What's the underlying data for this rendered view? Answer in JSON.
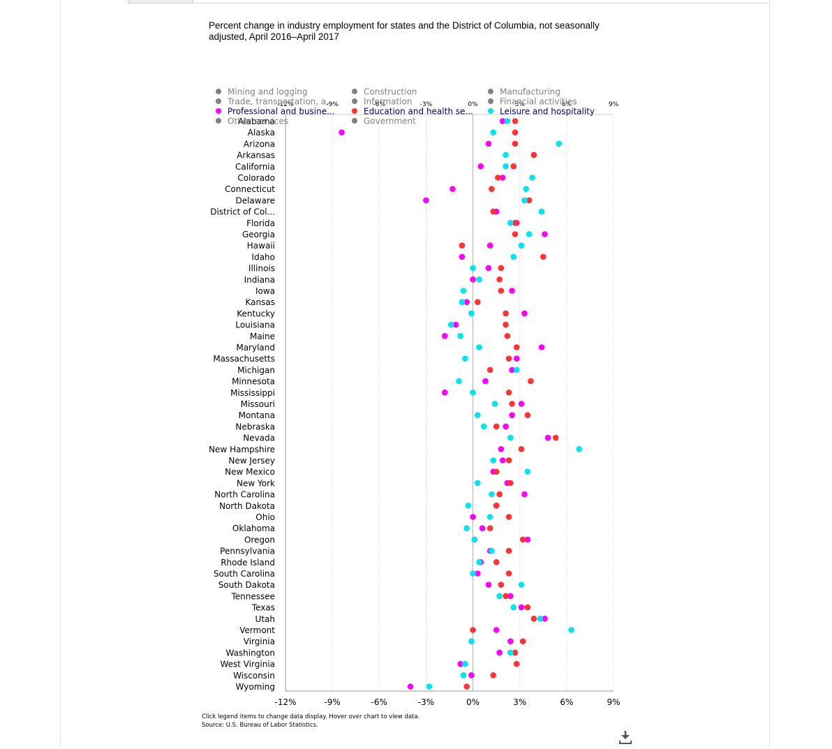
{
  "title": "Percent change in industry employment for states and the District of Columbia, not seasonally adjusted, April 2016–April 2017",
  "footer": {
    "note": "Click legend items to change data display. Hover over chart to view data.",
    "source": "Source: U.S. Bureau of Labor Statistics."
  },
  "icons": {
    "download": "download-icon"
  },
  "chart_data": {
    "type": "scatter",
    "orientation": "horizontal",
    "categories": [
      "Alabama",
      "Alaska",
      "Arizona",
      "Arkansas",
      "California",
      "Colorado",
      "Connecticut",
      "Delaware",
      "District of Col...",
      "Florida",
      "Georgia",
      "Hawaii",
      "Idaho",
      "Illinois",
      "Indiana",
      "Iowa",
      "Kansas",
      "Kentucky",
      "Louisiana",
      "Maine",
      "Maryland",
      "Massachusetts",
      "Michigan",
      "Minnesota",
      "Mississippi",
      "Missouri",
      "Montana",
      "Nebraska",
      "Nevada",
      "New Hampshire",
      "New Jersey",
      "New Mexico",
      "New York",
      "North Carolina",
      "North Dakota",
      "Ohio",
      "Oklahoma",
      "Oregon",
      "Pennsylvania",
      "Rhode Island",
      "South Carolina",
      "South Dakota",
      "Tennessee",
      "Texas",
      "Utah",
      "Vermont",
      "Virginia",
      "Washington",
      "West Virginia",
      "Wisconsin",
      "Wyoming"
    ],
    "xlim": [
      -12,
      9
    ],
    "x_ticks": [
      -12,
      -9,
      -6,
      -3,
      0,
      3,
      6,
      9
    ],
    "x_tick_labels": [
      "-12%",
      "-9%",
      "-6%",
      "-3%",
      "0%",
      "3%",
      "6%",
      "9%"
    ],
    "grid": true,
    "legend_position": "top",
    "legend": [
      {
        "name": "Mining and logging",
        "active": false,
        "color": "#808080"
      },
      {
        "name": "Construction",
        "active": false,
        "color": "#808080"
      },
      {
        "name": "Manufacturing",
        "active": false,
        "color": "#808080"
      },
      {
        "name": "Trade, transportation, a...",
        "active": false,
        "color": "#808080"
      },
      {
        "name": "Information",
        "active": false,
        "color": "#808080"
      },
      {
        "name": "Financial activities",
        "active": false,
        "color": "#808080"
      },
      {
        "name": "Professional and busine...",
        "active": true,
        "color": "#ff00ff"
      },
      {
        "name": "Education and health se...",
        "active": true,
        "color": "#ff3333"
      },
      {
        "name": "Leisure and hospitality",
        "active": true,
        "color": "#00e5ee"
      },
      {
        "name": "Other services",
        "active": false,
        "color": "#808080"
      },
      {
        "name": "Government",
        "active": false,
        "color": "#808080"
      }
    ],
    "series": [
      {
        "name": "Professional and busine...",
        "color": "#ff00ff",
        "values": [
          1.9,
          -8.4,
          1.0,
          3.9,
          0.5,
          1.9,
          -1.3,
          -3.0,
          1.5,
          2.8,
          4.6,
          1.1,
          -0.7,
          1.0,
          0.0,
          2.5,
          -0.4,
          3.3,
          -1.1,
          -1.8,
          4.4,
          2.8,
          2.5,
          0.8,
          -1.8,
          3.1,
          2.5,
          2.1,
          4.8,
          1.8,
          1.9,
          1.3,
          2.2,
          3.3,
          1.5,
          0.0,
          0.6,
          3.5,
          1.1,
          0.5,
          0.3,
          1.0,
          2.4,
          3.1,
          4.6,
          1.5,
          2.4,
          1.7,
          -0.8,
          -0.1,
          -4.0
        ]
      },
      {
        "name": "Education and health se...",
        "color": "#ff3333",
        "values": [
          2.7,
          2.7,
          2.7,
          3.9,
          2.6,
          1.6,
          1.2,
          3.6,
          1.3,
          2.7,
          2.7,
          -0.7,
          4.5,
          1.8,
          1.7,
          1.8,
          0.3,
          2.1,
          2.1,
          2.2,
          2.8,
          2.3,
          1.1,
          3.7,
          2.3,
          2.5,
          3.5,
          1.5,
          5.3,
          3.1,
          2.3,
          1.5,
          2.4,
          1.7,
          1.5,
          2.3,
          1.1,
          3.2,
          2.3,
          1.5,
          2.3,
          1.8,
          2.1,
          3.5,
          3.9,
          0.0,
          3.2,
          2.7,
          2.8,
          1.3,
          -0.4
        ]
      },
      {
        "name": "Leisure and hospitality",
        "color": "#00e5ee",
        "values": [
          2.2,
          1.3,
          5.5,
          2.1,
          2.1,
          3.8,
          3.4,
          3.3,
          4.4,
          2.4,
          3.6,
          3.1,
          2.6,
          0.0,
          0.4,
          -0.6,
          -0.7,
          -0.1,
          -1.4,
          -0.8,
          0.4,
          -0.5,
          2.8,
          -0.9,
          0.0,
          1.4,
          0.3,
          0.7,
          2.4,
          6.8,
          1.3,
          3.5,
          0.3,
          1.2,
          -0.3,
          1.1,
          -0.4,
          0.1,
          1.2,
          0.4,
          0.0,
          3.1,
          1.7,
          2.6,
          4.3,
          6.3,
          -0.1,
          2.4,
          -0.5,
          -0.6,
          -2.8
        ]
      }
    ]
  }
}
